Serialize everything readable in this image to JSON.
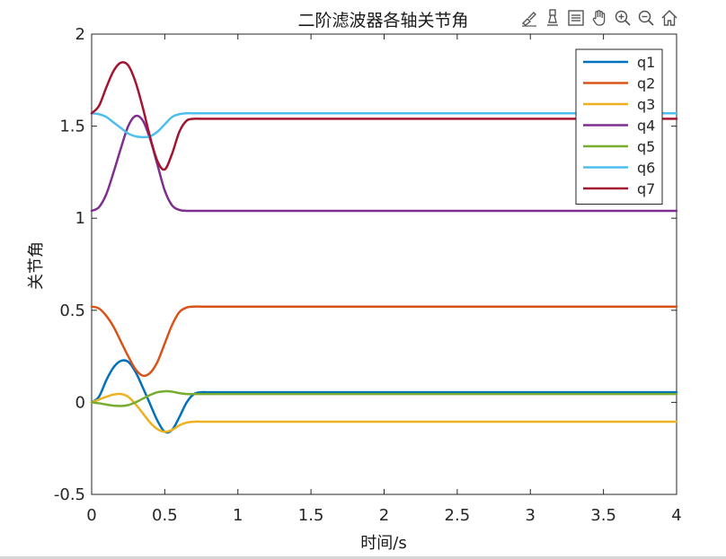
{
  "figure": {
    "toolbar": {
      "icons": [
        "brush-icon",
        "data-tips-icon",
        "legend-toggle-icon",
        "pan-hand-icon",
        "zoom-in-icon",
        "zoom-out-icon",
        "home-icon"
      ]
    }
  },
  "chart_data": {
    "type": "line",
    "title": "二阶滤波器各轴关节角",
    "xlabel": "时间/s",
    "ylabel": "关节角",
    "xlim": [
      0,
      4
    ],
    "ylim": [
      -0.5,
      2
    ],
    "xticks": [
      "0",
      "0.5",
      "1",
      "1.5",
      "2",
      "2.5",
      "3",
      "3.5",
      "4"
    ],
    "yticks": [
      "-0.5",
      "0",
      "0.5",
      "1",
      "1.5",
      "2"
    ],
    "grid": false,
    "legend_position": "top-right",
    "x": [
      0,
      0.05,
      0.1,
      0.15,
      0.2,
      0.25,
      0.3,
      0.35,
      0.4,
      0.45,
      0.5,
      0.55,
      0.6,
      0.65,
      0.7,
      0.75,
      0.8,
      1,
      1.5,
      2,
      2.5,
      3,
      3.5,
      4
    ],
    "series": [
      {
        "name": "q1",
        "color": "#0072BD",
        "values": [
          0,
          0.03,
          0.12,
          0.19,
          0.225,
          0.22,
          0.165,
          0.08,
          -0.01,
          -0.1,
          -0.16,
          -0.15,
          -0.08,
          0.0,
          0.045,
          0.055,
          0.055,
          0.055,
          0.055,
          0.055,
          0.055,
          0.055,
          0.055,
          0.055
        ]
      },
      {
        "name": "q2",
        "color": "#D95319",
        "values": [
          0.52,
          0.51,
          0.47,
          0.41,
          0.33,
          0.25,
          0.18,
          0.145,
          0.16,
          0.22,
          0.32,
          0.42,
          0.49,
          0.515,
          0.52,
          0.52,
          0.52,
          0.52,
          0.52,
          0.52,
          0.52,
          0.52,
          0.52,
          0.52
        ]
      },
      {
        "name": "q3",
        "color": "#EDB120",
        "values": [
          0,
          0.015,
          0.03,
          0.042,
          0.045,
          0.03,
          -0.01,
          -0.06,
          -0.11,
          -0.145,
          -0.16,
          -0.15,
          -0.125,
          -0.11,
          -0.105,
          -0.105,
          -0.105,
          -0.105,
          -0.105,
          -0.105,
          -0.105,
          -0.105,
          -0.105,
          -0.105
        ]
      },
      {
        "name": "q4",
        "color": "#7E2F8E",
        "values": [
          1.04,
          1.06,
          1.13,
          1.25,
          1.38,
          1.5,
          1.555,
          1.53,
          1.43,
          1.29,
          1.15,
          1.07,
          1.045,
          1.04,
          1.04,
          1.04,
          1.04,
          1.04,
          1.04,
          1.04,
          1.04,
          1.04,
          1.04,
          1.04
        ]
      },
      {
        "name": "q5",
        "color": "#77AC30",
        "values": [
          0,
          -0.005,
          -0.012,
          -0.018,
          -0.02,
          -0.015,
          0.0,
          0.02,
          0.04,
          0.055,
          0.06,
          0.058,
          0.05,
          0.045,
          0.045,
          0.045,
          0.045,
          0.045,
          0.045,
          0.045,
          0.045,
          0.045,
          0.045,
          0.045
        ]
      },
      {
        "name": "q6",
        "color": "#4DBEEE",
        "values": [
          1.57,
          1.565,
          1.55,
          1.52,
          1.49,
          1.46,
          1.445,
          1.44,
          1.445,
          1.47,
          1.51,
          1.55,
          1.565,
          1.57,
          1.57,
          1.57,
          1.57,
          1.57,
          1.57,
          1.57,
          1.57,
          1.57,
          1.57,
          1.57
        ]
      },
      {
        "name": "q7",
        "color": "#A2142F",
        "values": [
          1.57,
          1.61,
          1.71,
          1.8,
          1.845,
          1.83,
          1.74,
          1.6,
          1.44,
          1.31,
          1.265,
          1.35,
          1.47,
          1.53,
          1.54,
          1.54,
          1.54,
          1.54,
          1.54,
          1.54,
          1.54,
          1.54,
          1.54,
          1.54
        ]
      }
    ]
  }
}
